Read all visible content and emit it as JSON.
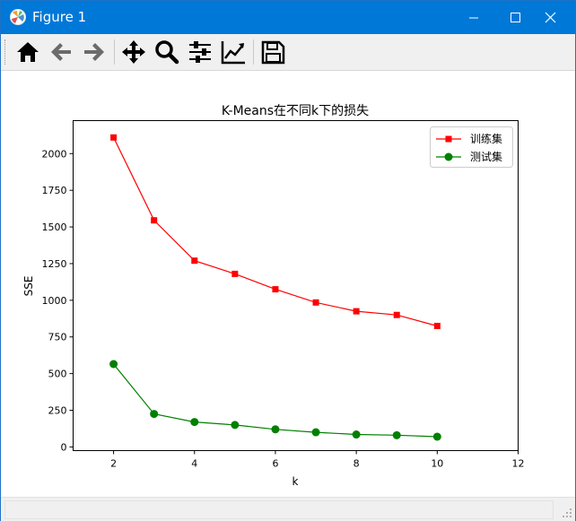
{
  "window": {
    "title": "Figure 1",
    "controls": [
      "minimize",
      "maximize",
      "close"
    ]
  },
  "toolbar": {
    "buttons": [
      {
        "name": "home",
        "icon": "home-icon"
      },
      {
        "name": "back",
        "icon": "arrow-left-icon"
      },
      {
        "name": "forward",
        "icon": "arrow-right-icon"
      },
      {
        "name": "pan",
        "icon": "move-icon"
      },
      {
        "name": "zoom",
        "icon": "magnifier-icon"
      },
      {
        "name": "subplots",
        "icon": "sliders-icon"
      },
      {
        "name": "edit-axes",
        "icon": "line-chart-icon"
      },
      {
        "name": "save",
        "icon": "floppy-disk-icon"
      }
    ]
  },
  "chart_data": {
    "type": "line",
    "title": "K-Means在不同k下的损失",
    "xlabel": "k",
    "ylabel": "SSE",
    "xlim": [
      1,
      12
    ],
    "ylim": [
      -25,
      2225
    ],
    "xticks": [
      2,
      4,
      6,
      8,
      10,
      12
    ],
    "yticks": [
      0,
      250,
      500,
      750,
      1000,
      1250,
      1500,
      1750,
      2000
    ],
    "grid": false,
    "legend_position": "top-right",
    "x": [
      2,
      3,
      4,
      5,
      6,
      7,
      8,
      9,
      10
    ],
    "series": [
      {
        "name": "训练集",
        "color": "#ff0000",
        "marker": "square",
        "values": [
          2110,
          1545,
          1270,
          1180,
          1075,
          985,
          925,
          900,
          825
        ]
      },
      {
        "name": "测试集",
        "color": "#008000",
        "marker": "circle",
        "values": [
          565,
          225,
          170,
          150,
          120,
          100,
          85,
          80,
          70
        ]
      }
    ]
  },
  "statusbar": {
    "text": ""
  }
}
